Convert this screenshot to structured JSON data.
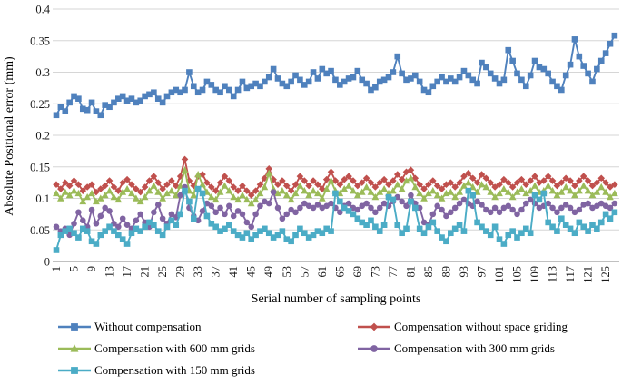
{
  "chart_data": {
    "type": "line",
    "title": "",
    "xlabel": "Serial number of sampling points",
    "ylabel": "Absolute Positional error  (mm)",
    "x_description": "serial numbers 1 through 127 (one value per sampling point)",
    "xlim": [
      1,
      127
    ],
    "ylim": [
      0,
      0.4
    ],
    "grid": true,
    "legend_position": "bottom-two-columns",
    "yticks": [
      0,
      0.05,
      0.1,
      0.15,
      0.2,
      0.25,
      0.3,
      0.35,
      0.4
    ],
    "ytick_labels": [
      "0",
      "0.05",
      "0.1",
      "0.15",
      "0.2",
      "0.25",
      "0.3",
      "0.35",
      "0.4"
    ],
    "xticks": [
      1,
      5,
      9,
      13,
      17,
      21,
      25,
      29,
      33,
      37,
      41,
      45,
      49,
      53,
      57,
      61,
      65,
      69,
      73,
      77,
      81,
      85,
      89,
      93,
      97,
      101,
      105,
      109,
      113,
      117,
      121,
      125
    ],
    "series": [
      {
        "name": "Without compensation",
        "color": "#4F81BD",
        "marker": "square",
        "values": [
          0.232,
          0.245,
          0.238,
          0.252,
          0.262,
          0.258,
          0.242,
          0.24,
          0.252,
          0.238,
          0.232,
          0.248,
          0.245,
          0.252,
          0.258,
          0.262,
          0.255,
          0.258,
          0.252,
          0.255,
          0.262,
          0.265,
          0.268,
          0.258,
          0.252,
          0.262,
          0.268,
          0.272,
          0.268,
          0.272,
          0.3,
          0.278,
          0.268,
          0.272,
          0.285,
          0.28,
          0.272,
          0.268,
          0.278,
          0.272,
          0.262,
          0.272,
          0.285,
          0.275,
          0.278,
          0.282,
          0.278,
          0.285,
          0.292,
          0.305,
          0.29,
          0.282,
          0.278,
          0.285,
          0.295,
          0.288,
          0.28,
          0.285,
          0.3,
          0.29,
          0.305,
          0.298,
          0.302,
          0.288,
          0.28,
          0.285,
          0.29,
          0.292,
          0.302,
          0.288,
          0.282,
          0.272,
          0.276,
          0.285,
          0.288,
          0.292,
          0.3,
          0.325,
          0.298,
          0.288,
          0.29,
          0.295,
          0.285,
          0.272,
          0.268,
          0.278,
          0.285,
          0.292,
          0.285,
          0.29,
          0.285,
          0.292,
          0.302,
          0.295,
          0.288,
          0.282,
          0.315,
          0.308,
          0.298,
          0.29,
          0.282,
          0.288,
          0.335,
          0.318,
          0.298,
          0.288,
          0.278,
          0.295,
          0.318,
          0.308,
          0.305,
          0.298,
          0.285,
          0.278,
          0.272,
          0.295,
          0.312,
          0.352,
          0.325,
          0.31,
          0.298,
          0.285,
          0.305,
          0.318,
          0.33,
          0.345,
          0.358
        ]
      },
      {
        "name": "Compensation without space griding",
        "color": "#C0504D",
        "marker": "diamond",
        "values": [
          0.122,
          0.115,
          0.125,
          0.12,
          0.128,
          0.122,
          0.112,
          0.118,
          0.122,
          0.11,
          0.115,
          0.12,
          0.128,
          0.118,
          0.112,
          0.125,
          0.13,
          0.122,
          0.115,
          0.11,
          0.118,
          0.128,
          0.135,
          0.125,
          0.115,
          0.122,
          0.128,
          0.12,
          0.135,
          0.162,
          0.128,
          0.12,
          0.135,
          0.138,
          0.125,
          0.118,
          0.112,
          0.125,
          0.135,
          0.128,
          0.118,
          0.112,
          0.12,
          0.112,
          0.105,
          0.112,
          0.122,
          0.132,
          0.147,
          0.13,
          0.122,
          0.128,
          0.12,
          0.112,
          0.122,
          0.135,
          0.128,
          0.12,
          0.128,
          0.122,
          0.115,
          0.13,
          0.142,
          0.128,
          0.122,
          0.13,
          0.135,
          0.128,
          0.12,
          0.125,
          0.132,
          0.125,
          0.118,
          0.125,
          0.13,
          0.122,
          0.128,
          0.138,
          0.13,
          0.142,
          0.145,
          0.132,
          0.122,
          0.115,
          0.122,
          0.128,
          0.12,
          0.115,
          0.122,
          0.125,
          0.118,
          0.125,
          0.135,
          0.14,
          0.132,
          0.125,
          0.138,
          0.132,
          0.125,
          0.118,
          0.122,
          0.13,
          0.125,
          0.118,
          0.125,
          0.13,
          0.122,
          0.128,
          0.135,
          0.125,
          0.128,
          0.135,
          0.128,
          0.12,
          0.125,
          0.132,
          0.128,
          0.12,
          0.128,
          0.135,
          0.128,
          0.12,
          0.125,
          0.132,
          0.125,
          0.118,
          0.122
        ]
      },
      {
        "name": "Compensation with 600 mm grids",
        "color": "#9BBB59",
        "marker": "triangle",
        "values": [
          0.108,
          0.1,
          0.11,
          0.105,
          0.112,
          0.108,
          0.095,
          0.102,
          0.108,
          0.095,
          0.1,
          0.105,
          0.112,
          0.102,
          0.098,
          0.11,
          0.115,
          0.108,
          0.1,
          0.095,
          0.102,
          0.112,
          0.12,
          0.11,
          0.1,
          0.108,
          0.112,
          0.105,
          0.12,
          0.145,
          0.112,
          0.105,
          0.138,
          0.122,
          0.11,
          0.102,
          0.098,
          0.11,
          0.12,
          0.112,
          0.102,
          0.098,
          0.105,
          0.098,
          0.092,
          0.098,
          0.108,
          0.118,
          0.14,
          0.115,
          0.108,
          0.112,
          0.105,
          0.098,
          0.108,
          0.12,
          0.112,
          0.105,
          0.112,
          0.108,
          0.1,
          0.115,
          0.128,
          0.112,
          0.108,
          0.115,
          0.12,
          0.112,
          0.105,
          0.11,
          0.118,
          0.11,
          0.102,
          0.11,
          0.115,
          0.108,
          0.112,
          0.122,
          0.115,
          0.128,
          0.132,
          0.118,
          0.108,
          0.1,
          0.108,
          0.112,
          0.105,
          0.1,
          0.108,
          0.11,
          0.102,
          0.11,
          0.12,
          0.125,
          0.118,
          0.11,
          0.122,
          0.118,
          0.11,
          0.102,
          0.108,
          0.115,
          0.11,
          0.102,
          0.11,
          0.115,
          0.108,
          0.112,
          0.12,
          0.11,
          0.112,
          0.12,
          0.112,
          0.105,
          0.11,
          0.118,
          0.112,
          0.105,
          0.112,
          0.12,
          0.112,
          0.105,
          0.11,
          0.118,
          0.11,
          0.102,
          0.108
        ]
      },
      {
        "name": "Compensation with 300 mm grids",
        "color": "#8064A2",
        "marker": "circle",
        "values": [
          0.055,
          0.048,
          0.052,
          0.042,
          0.06,
          0.078,
          0.065,
          0.055,
          0.082,
          0.06,
          0.072,
          0.085,
          0.08,
          0.06,
          0.055,
          0.068,
          0.058,
          0.052,
          0.065,
          0.075,
          0.062,
          0.055,
          0.078,
          0.09,
          0.068,
          0.06,
          0.075,
          0.07,
          0.105,
          0.118,
          0.085,
          0.072,
          0.065,
          0.08,
          0.092,
          0.088,
          0.078,
          0.085,
          0.075,
          0.088,
          0.072,
          0.08,
          0.075,
          0.062,
          0.055,
          0.075,
          0.088,
          0.095,
          0.092,
          0.11,
          0.085,
          0.068,
          0.075,
          0.082,
          0.078,
          0.085,
          0.092,
          0.088,
          0.085,
          0.09,
          0.085,
          0.088,
          0.092,
          0.085,
          0.078,
          0.088,
          0.092,
          0.085,
          0.082,
          0.088,
          0.092,
          0.085,
          0.078,
          0.085,
          0.092,
          0.088,
          0.095,
          0.102,
          0.095,
          0.088,
          0.105,
          0.092,
          0.085,
          0.062,
          0.058,
          0.075,
          0.088,
          0.082,
          0.072,
          0.078,
          0.085,
          0.092,
          0.098,
          0.092,
          0.088,
          0.095,
          0.09,
          0.082,
          0.078,
          0.085,
          0.078,
          0.085,
          0.088,
          0.082,
          0.075,
          0.082,
          0.092,
          0.098,
          0.092,
          0.085,
          0.088,
          0.092,
          0.085,
          0.078,
          0.085,
          0.09,
          0.085,
          0.078,
          0.082,
          0.09,
          0.092,
          0.085,
          0.088,
          0.092,
          0.088,
          0.085,
          0.092
        ]
      },
      {
        "name": "Compensation with 150 mm grids",
        "color": "#4BACC6",
        "marker": "square",
        "values": [
          0.018,
          0.042,
          0.048,
          0.052,
          0.045,
          0.038,
          0.052,
          0.048,
          0.032,
          0.028,
          0.042,
          0.048,
          0.055,
          0.048,
          0.042,
          0.035,
          0.028,
          0.045,
          0.052,
          0.048,
          0.055,
          0.062,
          0.058,
          0.048,
          0.042,
          0.055,
          0.065,
          0.058,
          0.075,
          0.112,
          0.095,
          0.068,
          0.115,
          0.108,
          0.072,
          0.06,
          0.055,
          0.048,
          0.052,
          0.058,
          0.048,
          0.042,
          0.038,
          0.045,
          0.035,
          0.042,
          0.048,
          0.052,
          0.045,
          0.038,
          0.042,
          0.048,
          0.035,
          0.032,
          0.042,
          0.052,
          0.045,
          0.038,
          0.042,
          0.048,
          0.045,
          0.052,
          0.048,
          0.108,
          0.095,
          0.085,
          0.08,
          0.075,
          0.068,
          0.062,
          0.058,
          0.065,
          0.055,
          0.048,
          0.058,
          0.102,
          0.098,
          0.058,
          0.045,
          0.052,
          0.095,
          0.085,
          0.052,
          0.045,
          0.055,
          0.062,
          0.048,
          0.038,
          0.032,
          0.045,
          0.052,
          0.058,
          0.048,
          0.112,
          0.105,
          0.062,
          0.055,
          0.048,
          0.042,
          0.055,
          0.035,
          0.028,
          0.042,
          0.048,
          0.038,
          0.045,
          0.052,
          0.045,
          0.105,
          0.098,
          0.108,
          0.062,
          0.055,
          0.048,
          0.068,
          0.058,
          0.052,
          0.045,
          0.062,
          0.055,
          0.048,
          0.058,
          0.052,
          0.062,
          0.075,
          0.068,
          0.078
        ]
      }
    ],
    "colors": {
      "gridline": "#d6d6d6",
      "axis_line": "#9a9a9a",
      "tick_text": "#1a1a1a"
    }
  }
}
